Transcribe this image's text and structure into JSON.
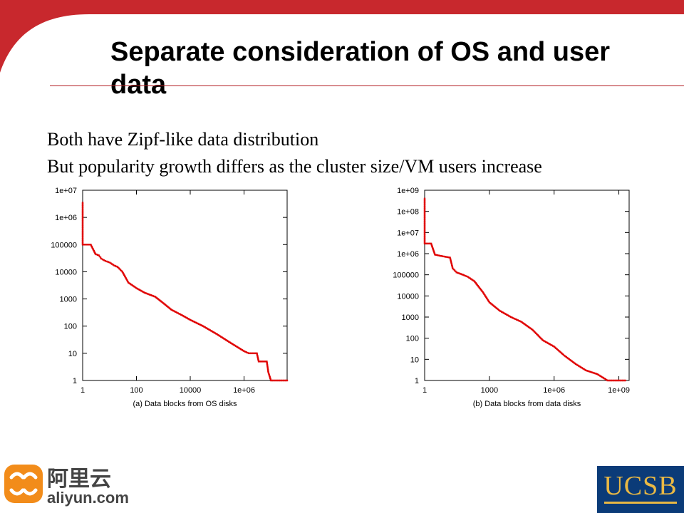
{
  "slide": {
    "title": "Separate consideration of OS and user data",
    "bullets": [
      "Both have Zipf-like data distribution",
      "But popularity growth differs as the cluster size/VM users increase"
    ]
  },
  "logos": {
    "left_cn": "阿里云",
    "left_domain": "aliyun.com",
    "right": "UCSB"
  },
  "colors": {
    "accent_red": "#c8282d",
    "data_red": "#e00000",
    "ucsb_blue": "#0b3b78",
    "ucsb_gold": "#e9b844",
    "aliyun_orange": "#f28c1a"
  },
  "chart_data": [
    {
      "type": "scatter",
      "log_x": true,
      "log_y": true,
      "xlim": [
        1,
        40000000
      ],
      "ylim": [
        1,
        10000000
      ],
      "x_ticks": [
        1,
        100,
        10000,
        1000000
      ],
      "x_tick_labels": [
        "1",
        "100",
        "10000",
        "1e+06"
      ],
      "y_ticks": [
        1,
        10,
        100,
        1000,
        10000,
        100000,
        1000000,
        10000000
      ],
      "y_tick_labels": [
        "1",
        "10",
        "100",
        "1000",
        "10000",
        "100000",
        "1e+06",
        "1e+07"
      ],
      "xlabel": "(a) Data blocks from OS disks",
      "ylabel": "",
      "grid": false,
      "series": [
        {
          "points": [
            [
              1,
              3500000
            ],
            [
              1,
              100000
            ],
            [
              2,
              100000
            ],
            [
              3,
              45000
            ],
            [
              4,
              40000
            ],
            [
              5,
              30000
            ],
            [
              7,
              25000
            ],
            [
              10,
              22000
            ],
            [
              15,
              17000
            ],
            [
              20,
              15000
            ],
            [
              30,
              10000
            ],
            [
              50,
              4000
            ],
            [
              100,
              2500
            ],
            [
              200,
              1700
            ],
            [
              500,
              1200
            ],
            [
              1000,
              700
            ],
            [
              2000,
              400
            ],
            [
              5000,
              250
            ],
            [
              10000,
              170
            ],
            [
              30000,
              100
            ],
            [
              100000,
              50
            ],
            [
              300000,
              25
            ],
            [
              1000000,
              12
            ],
            [
              1500000,
              10
            ],
            [
              3000000,
              10
            ],
            [
              3500000,
              5
            ],
            [
              7000000,
              5
            ],
            [
              8000000,
              2
            ],
            [
              10000000,
              1
            ],
            [
              40000000,
              1
            ]
          ]
        }
      ]
    },
    {
      "type": "scatter",
      "log_x": true,
      "log_y": true,
      "xlim": [
        1,
        3000000000
      ],
      "ylim": [
        1,
        1000000000
      ],
      "x_ticks": [
        1,
        1000,
        1000000,
        1000000000
      ],
      "x_tick_labels": [
        "1",
        "1000",
        "1e+06",
        "1e+09"
      ],
      "y_ticks": [
        1,
        10,
        100,
        1000,
        10000,
        100000,
        1000000,
        10000000,
        100000000,
        1000000000
      ],
      "y_tick_labels": [
        "1",
        "10",
        "100",
        "1000",
        "10000",
        "100000",
        "1e+06",
        "1e+07",
        "1e+08",
        "1e+09"
      ],
      "xlabel": "(b) Data blocks from data disks",
      "ylabel": "",
      "grid": false,
      "series": [
        {
          "points": [
            [
              1,
              400000000
            ],
            [
              1,
              3000000
            ],
            [
              2,
              3000000
            ],
            [
              3,
              900000
            ],
            [
              5,
              800000
            ],
            [
              10,
              700000
            ],
            [
              15,
              650000
            ],
            [
              20,
              200000
            ],
            [
              30,
              130000
            ],
            [
              60,
              100000
            ],
            [
              100,
              80000
            ],
            [
              200,
              50000
            ],
            [
              500,
              15000
            ],
            [
              1000,
              5000
            ],
            [
              3000,
              2000
            ],
            [
              10000,
              1000
            ],
            [
              30000,
              600
            ],
            [
              100000,
              250
            ],
            [
              300000,
              80
            ],
            [
              1000000,
              40
            ],
            [
              3000000,
              15
            ],
            [
              10000000,
              6
            ],
            [
              30000000,
              3
            ],
            [
              100000000,
              2
            ],
            [
              300000000,
              1
            ],
            [
              2000000000,
              1
            ]
          ]
        }
      ]
    }
  ]
}
